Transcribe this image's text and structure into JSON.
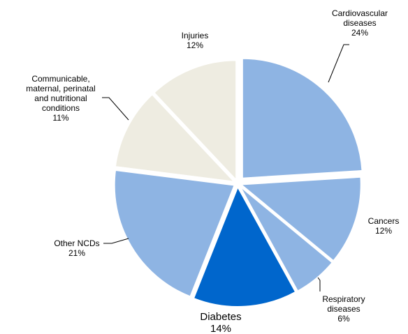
{
  "chart_data": {
    "type": "pie",
    "categories": [
      "Cardiovascular diseases",
      "Cancers",
      "Respiratory diseases",
      "Diabetes",
      "Other NCDs",
      "Communicable, maternal, perinatal and nutritional conditions",
      "Injuries"
    ],
    "values": [
      24,
      12,
      6,
      14,
      21,
      11,
      12
    ],
    "value_labels": [
      "24%",
      "12%",
      "6%",
      "14%",
      "21%",
      "11%",
      "12%"
    ],
    "colors": [
      "#8eb4e3",
      "#8eb4e3",
      "#8eb4e3",
      "#0066cc",
      "#8eb4e3",
      "#eeece1",
      "#eeece1"
    ]
  }
}
